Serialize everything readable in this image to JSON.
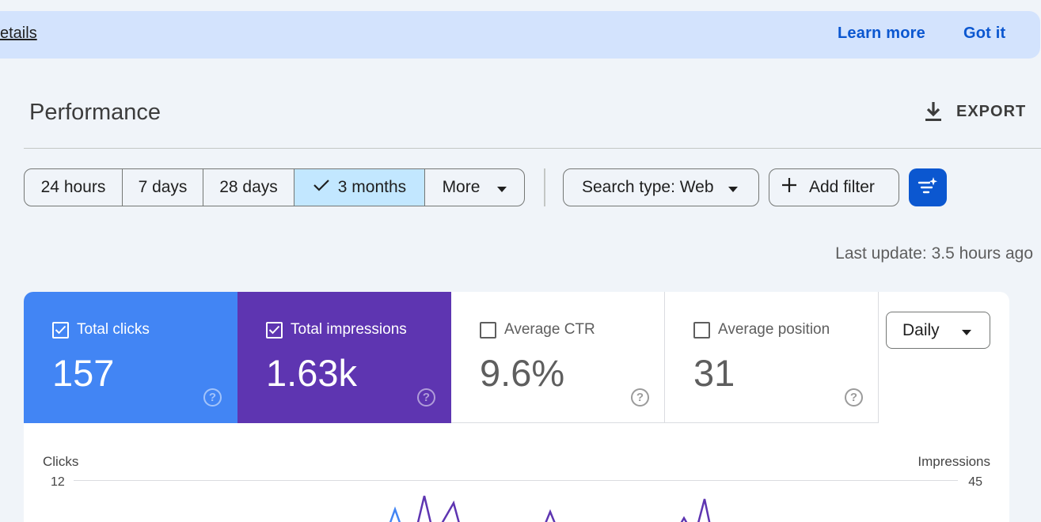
{
  "banner": {
    "details_link": "etails",
    "learn_more": "Learn more",
    "got_it": "Got it"
  },
  "header": {
    "title": "Performance",
    "export_label": "EXPORT",
    "export_icon": "download-icon"
  },
  "date_ranges": [
    {
      "label": "24 hours",
      "selected": false
    },
    {
      "label": "7 days",
      "selected": false
    },
    {
      "label": "28 days",
      "selected": false
    },
    {
      "label": "3 months",
      "selected": true
    },
    {
      "label": "More",
      "selected": false
    }
  ],
  "filters": {
    "search_type": "Search type: Web",
    "add_filter": "Add filter",
    "filter_icon": "filter-sparkle-icon"
  },
  "last_update": "Last update: 3.5 hours ago",
  "metrics": {
    "clicks": {
      "label": "Total clicks",
      "value": "157",
      "checked": true,
      "color": "#4285f4"
    },
    "impressions": {
      "label": "Total impressions",
      "value": "1.63k",
      "checked": true,
      "color": "#5e35b1"
    },
    "ctr": {
      "label": "Average CTR",
      "value": "9.6%",
      "checked": false
    },
    "position": {
      "label": "Average position",
      "value": "31",
      "checked": false
    }
  },
  "granularity": "Daily",
  "chart_data": {
    "type": "line",
    "ylabel_left": "Clicks",
    "ylabel_right": "Impressions",
    "ytick_left_max": "12",
    "ytick_right_max": "45",
    "grid": true,
    "series": [
      {
        "name": "Total clicks",
        "color": "#4285f4"
      },
      {
        "name": "Total impressions",
        "color": "#5e35b1"
      }
    ]
  },
  "colors": {
    "accent": "#0b57d0",
    "banner_bg": "#d3e3fd",
    "selected_segment": "#c2e7ff"
  }
}
